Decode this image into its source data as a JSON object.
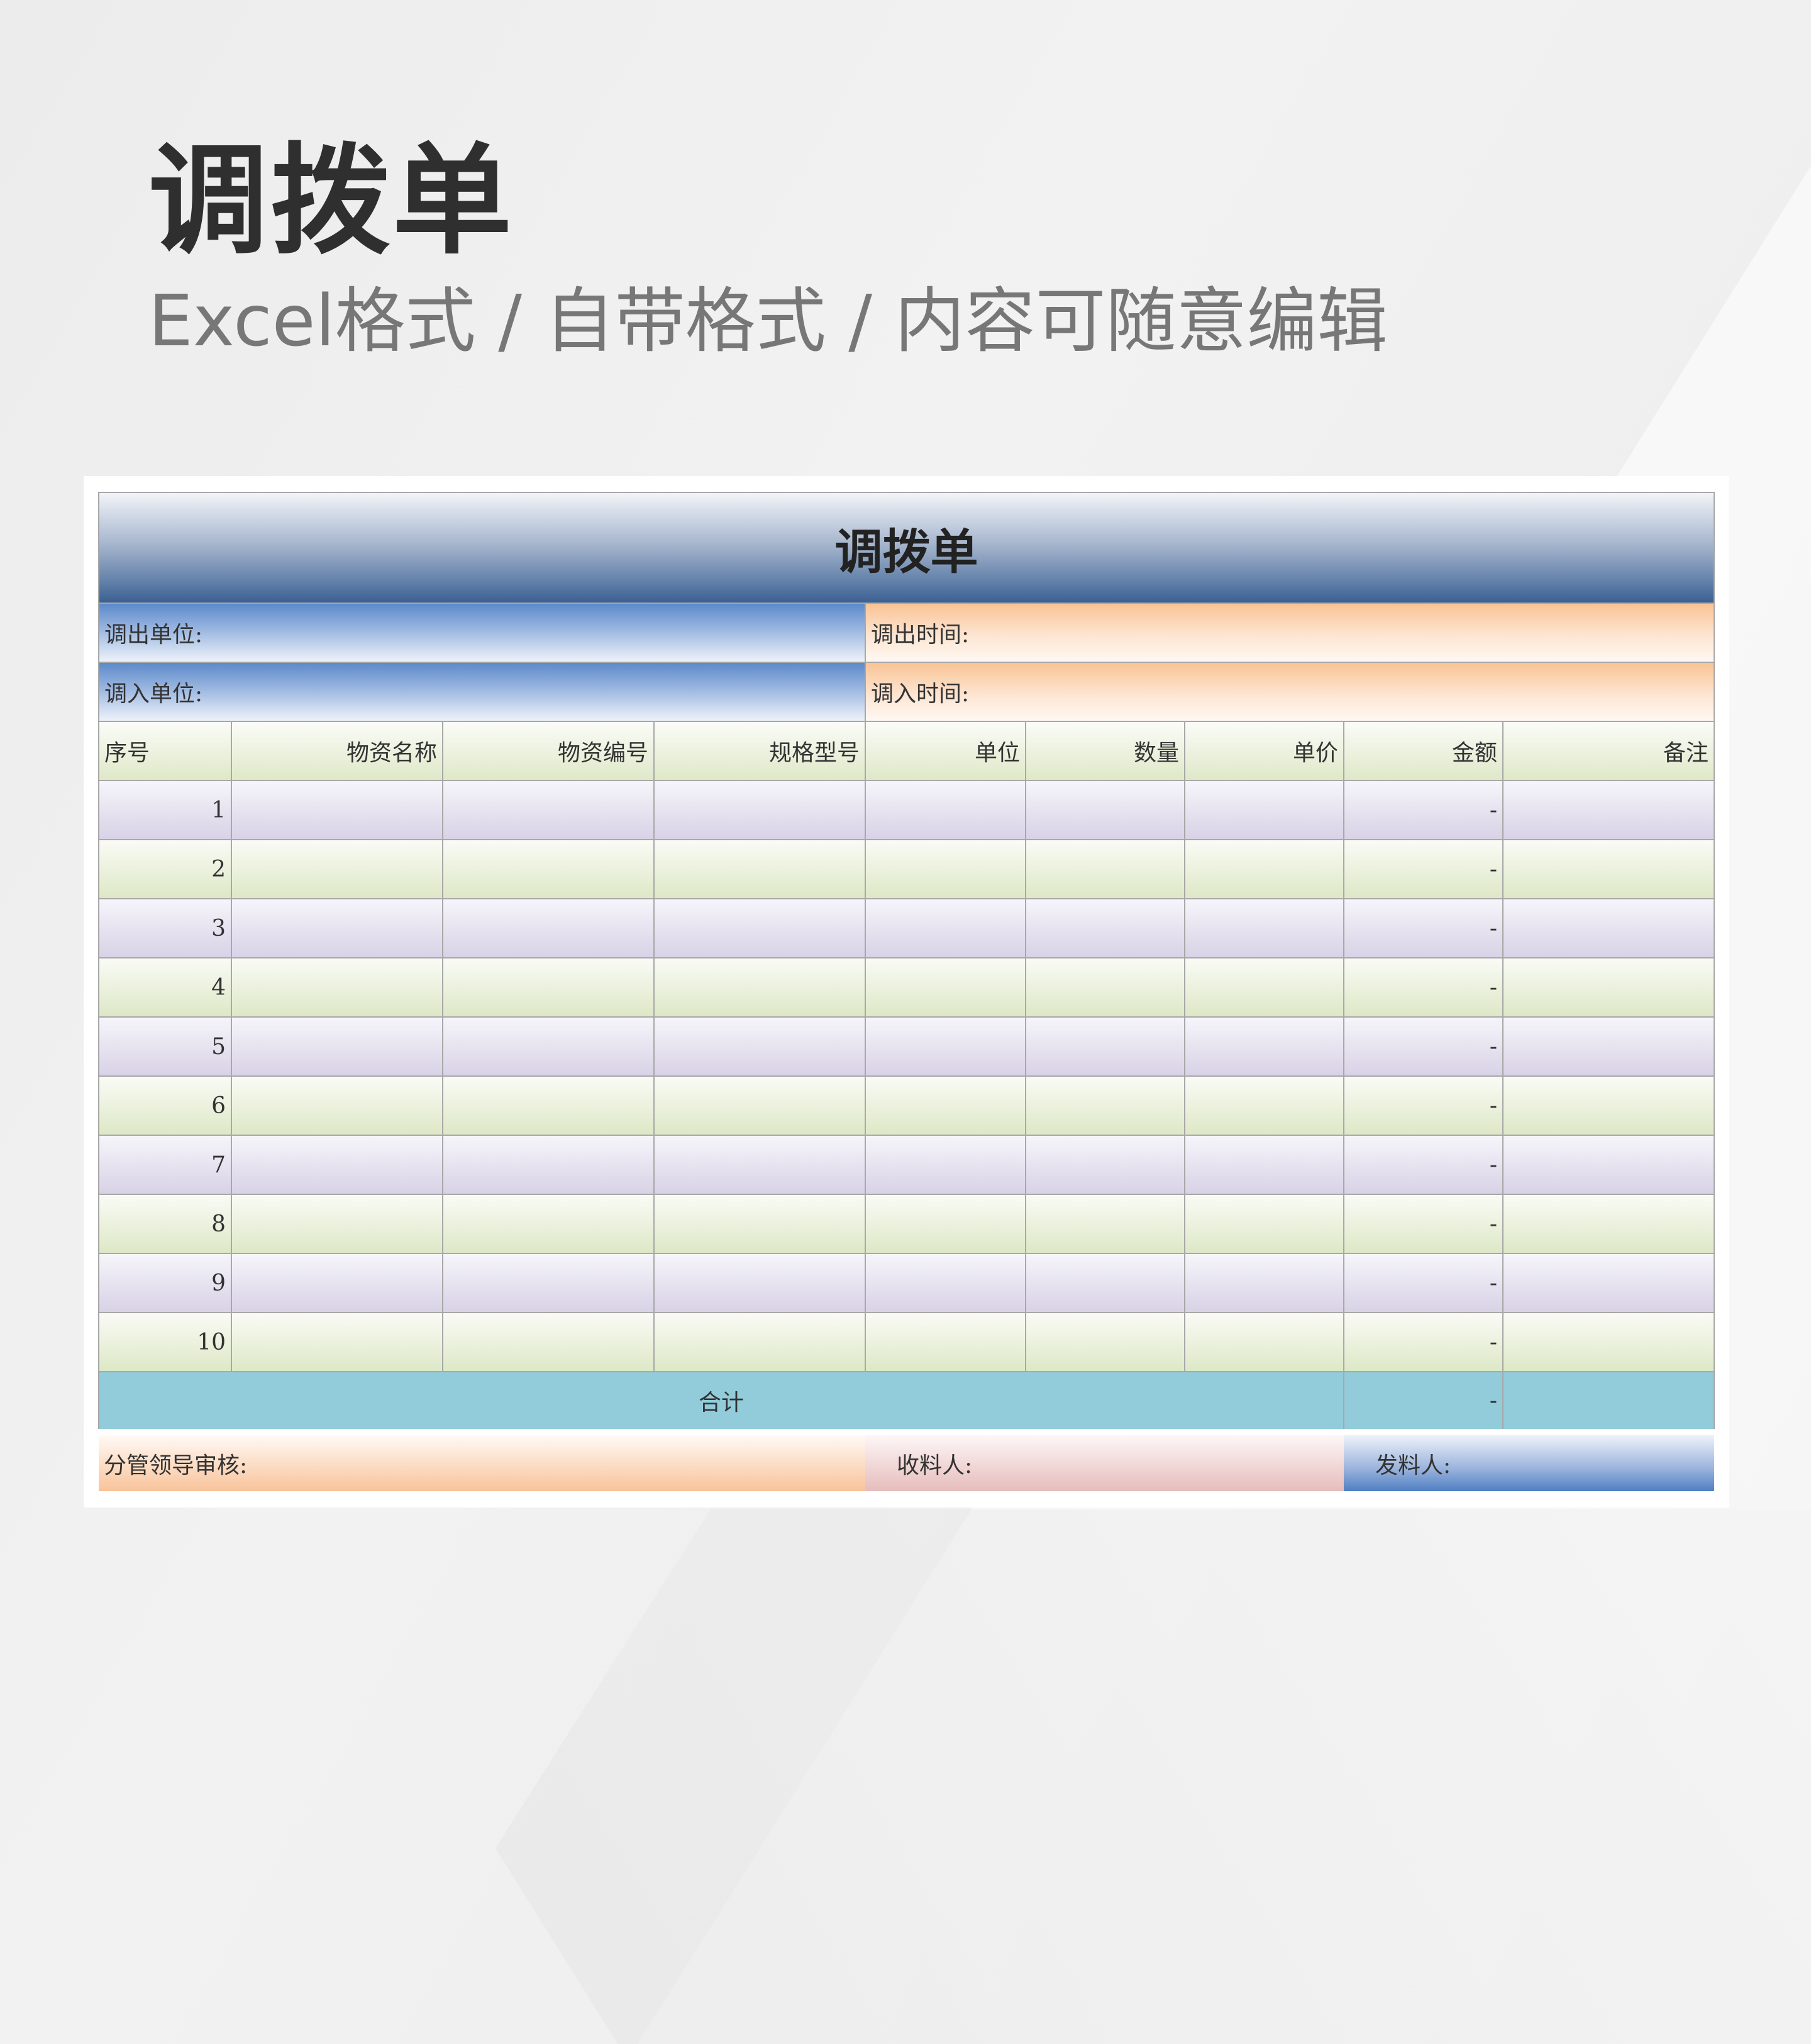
{
  "hero": {
    "title": "调拨单",
    "subtitle": "Excel格式 / 自带格式 / 内容可随意编辑"
  },
  "form": {
    "title": "调拨单",
    "out_unit": "调出单位:",
    "out_time": "调出时间:",
    "in_unit": "调入单位:",
    "in_time": "调入时间:",
    "columns": [
      "序号",
      "物资名称",
      "物资编号",
      "规格型号",
      "单位",
      "数量",
      "单价",
      "金额",
      "备注"
    ],
    "rows": [
      {
        "no": "1",
        "amount": "-"
      },
      {
        "no": "2",
        "amount": "-"
      },
      {
        "no": "3",
        "amount": "-"
      },
      {
        "no": "4",
        "amount": "-"
      },
      {
        "no": "5",
        "amount": "-"
      },
      {
        "no": "6",
        "amount": "-"
      },
      {
        "no": "7",
        "amount": "-"
      },
      {
        "no": "8",
        "amount": "-"
      },
      {
        "no": "9",
        "amount": "-"
      },
      {
        "no": "10",
        "amount": "-"
      }
    ],
    "total_label": "合计",
    "total_amount": "-",
    "footer": {
      "leader": "分管领导审核:",
      "receiver": "收料人:",
      "issuer": "发料人:"
    }
  }
}
